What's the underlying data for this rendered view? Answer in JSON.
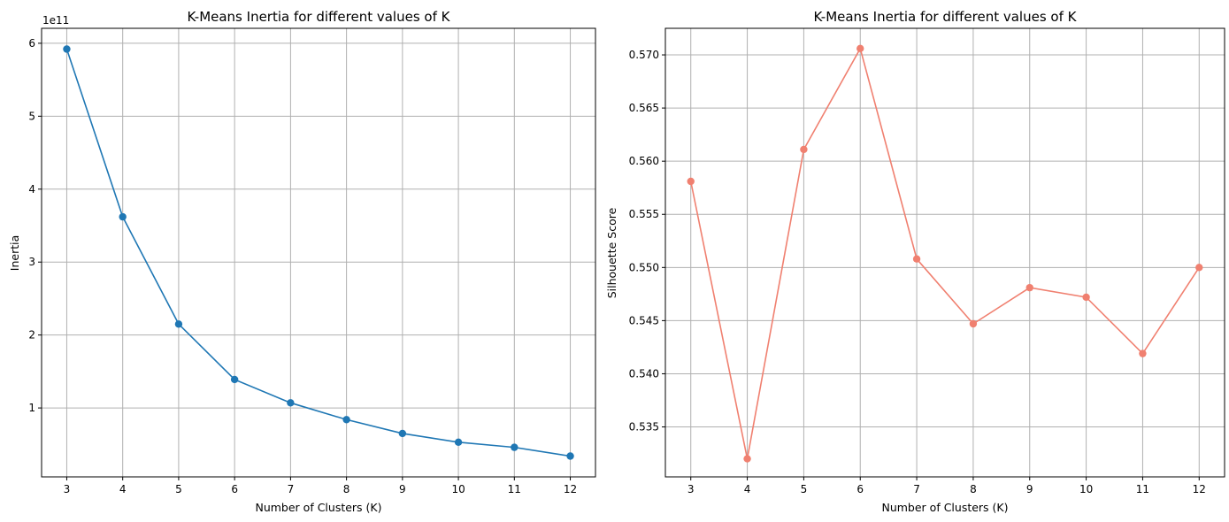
{
  "chart_data": [
    {
      "type": "line",
      "title": "K-Means Inertia for different values of K",
      "xlabel": "Number of Clusters (K)",
      "ylabel": "Inertia",
      "y_offset_label": "1e11",
      "x": [
        3,
        4,
        5,
        6,
        7,
        8,
        9,
        10,
        11,
        12
      ],
      "series": [
        {
          "values": [
            5.92,
            3.62,
            2.15,
            1.39,
            1.07,
            0.84,
            0.65,
            0.53,
            0.46,
            0.34
          ],
          "color": "#1f77b4",
          "marker": "circle"
        }
      ],
      "xticks": [
        "3",
        "4",
        "5",
        "6",
        "7",
        "8",
        "9",
        "10",
        "11",
        "12"
      ],
      "yticks": [
        1,
        2,
        3,
        4,
        5,
        6
      ],
      "ytick_labels": [
        "1",
        "2",
        "3",
        "4",
        "5",
        "6"
      ],
      "xlim": [
        2.55,
        12.45
      ],
      "ylim": [
        0.055,
        6.205
      ],
      "grid": true
    },
    {
      "type": "line",
      "title": "K-Means Inertia for different values of K",
      "xlabel": "Number of Clusters (K)",
      "ylabel": "Silhouette Score",
      "y_offset_label": "",
      "x": [
        3,
        4,
        5,
        6,
        7,
        8,
        9,
        10,
        11,
        12
      ],
      "series": [
        {
          "values": [
            0.5581,
            0.532,
            0.5611,
            0.5706,
            0.5508,
            0.5447,
            0.5481,
            0.5472,
            0.5419,
            0.55
          ],
          "color": "#f08070",
          "marker": "circle"
        }
      ],
      "xticks": [
        "3",
        "4",
        "5",
        "6",
        "7",
        "8",
        "9",
        "10",
        "11",
        "12"
      ],
      "yticks": [
        0.535,
        0.54,
        0.545,
        0.55,
        0.555,
        0.56,
        0.565,
        0.57
      ],
      "ytick_labels": [
        "0.535",
        "0.540",
        "0.545",
        "0.550",
        "0.555",
        "0.560",
        "0.565",
        "0.570"
      ],
      "xlim": [
        2.55,
        12.45
      ],
      "ylim": [
        0.5303,
        0.5725
      ],
      "grid": true
    }
  ]
}
